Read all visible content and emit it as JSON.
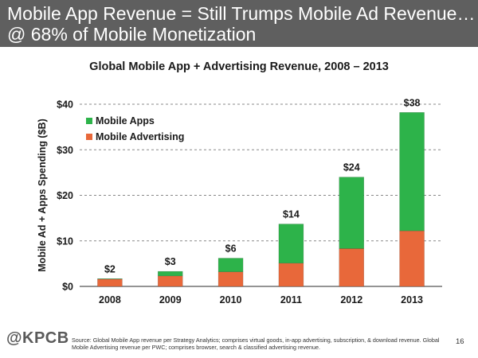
{
  "slide": {
    "title_line1": "Mobile App Revenue = Still Trumps Mobile Ad Revenue…",
    "title_line2": "@ 68% of Mobile Monetization",
    "logo": "@KPCB",
    "source": "Source: Global Mobile App revenue per Strategy Analytics; comprises virtual goods, in-app advertising, subscription, & download revenue. Global Mobile Advertising revenue per PWC; comprises browser, search & classified advertising revenue.",
    "page_number": "16"
  },
  "colors": {
    "header_bg": "#5f5f5f",
    "mobile_apps": "#2db34a",
    "mobile_advertising": "#e8683a",
    "gridline": "#888888"
  },
  "chart_data": {
    "type": "bar",
    "stacked": true,
    "title": "Global Mobile App + Advertising Revenue, 2008 – 2013",
    "xlabel": "",
    "ylabel": "Mobile Ad + Apps Spending ($B)",
    "ylim": [
      0,
      40
    ],
    "yticks": [
      0,
      10,
      20,
      30,
      40
    ],
    "ytick_labels": [
      "$0",
      "$10",
      "$20",
      "$30",
      "$40"
    ],
    "categories": [
      "2008",
      "2009",
      "2010",
      "2011",
      "2012",
      "2013"
    ],
    "series": [
      {
        "name": "Mobile Advertising",
        "color": "#e8683a",
        "values": [
          1.6,
          2.3,
          3.2,
          5.1,
          8.3,
          12.2
        ]
      },
      {
        "name": "Mobile Apps",
        "color": "#2db34a",
        "values": [
          0.1,
          1.0,
          3.0,
          8.6,
          15.7,
          26.0
        ]
      }
    ],
    "total_labels": [
      "$2",
      "$3",
      "$6",
      "$14",
      "$24",
      "$38"
    ],
    "grid": "horizontal-dashed",
    "legend_position": "top-left"
  }
}
